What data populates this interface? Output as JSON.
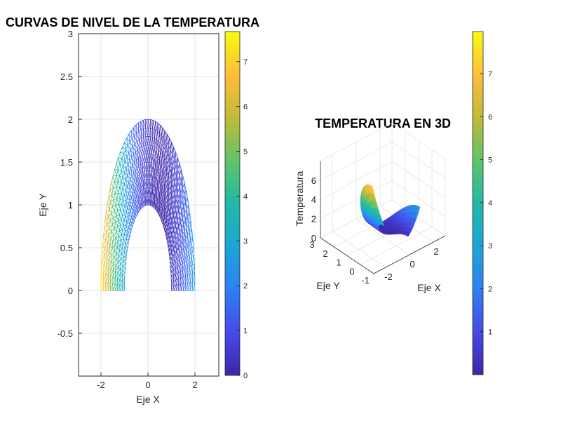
{
  "colormap": "parula",
  "chart_data": [
    {
      "type": "contour",
      "title": "CURVAS DE NIVEL DE LA TEMPERATURA",
      "xlabel": "Eje X",
      "ylabel": "Eje Y",
      "xlim": [
        -3,
        3
      ],
      "ylim": [
        -1,
        3
      ],
      "xticks": [
        -2,
        0,
        2
      ],
      "yticks": [
        -0.5,
        0,
        0.5,
        1,
        1.5,
        2,
        2.5,
        3
      ],
      "grid": true,
      "domain": {
        "r_inner": 1,
        "r_outer": 2,
        "theta_deg": [
          0,
          180
        ]
      },
      "colorbar": {
        "range": [
          0,
          7.67
        ],
        "ticks": [
          0,
          1,
          2,
          3,
          4,
          5,
          6,
          7
        ]
      }
    },
    {
      "type": "surface",
      "title": "TEMPERATURA EN 3D",
      "xlabel": "Eje X",
      "ylabel": "Eje Y",
      "zlabel": "Temperatura",
      "xlim": [
        -3,
        3
      ],
      "ylim": [
        -1,
        3
      ],
      "zlim": [
        0,
        8
      ],
      "xticks": [
        -2,
        0,
        2
      ],
      "yticks": [
        -1,
        0,
        1,
        2,
        3
      ],
      "zticks": [
        0,
        2,
        4,
        6
      ],
      "grid": true,
      "colorbar": {
        "range": [
          0,
          7.98
        ],
        "ticks": [
          1,
          2,
          3,
          4,
          5,
          6,
          7
        ]
      }
    }
  ]
}
